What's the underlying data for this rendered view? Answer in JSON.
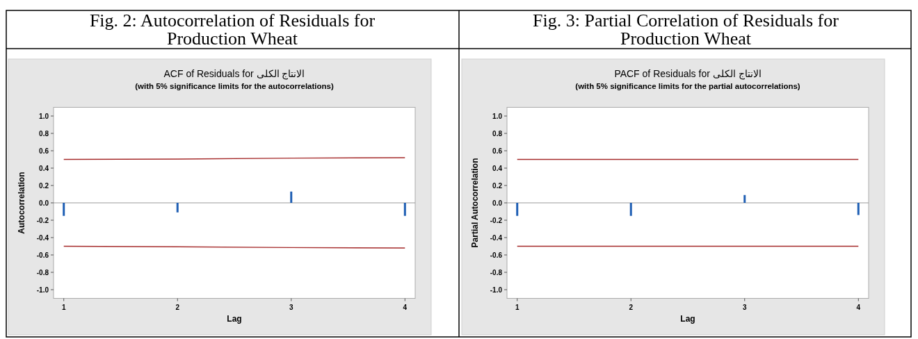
{
  "chart_data": [
    {
      "type": "bar",
      "title": "Fig. 2: Autocorrelation of Residuals for Production Wheat",
      "subtitle": "ACF of Residuals for الانتاج الكلى",
      "annotations": [
        "(with 5% significance limits for the autocorrelations)"
      ],
      "xlabel": "Lag",
      "ylabel": "Autocorrelation",
      "x": [
        1,
        2,
        3,
        4
      ],
      "xlim": [
        0.91,
        4.09
      ],
      "xticks": [
        1,
        2,
        3,
        4
      ],
      "ylim": [
        -1.1,
        1.1
      ],
      "yticks": [
        {
          "value": -1,
          "label": "-1.0"
        },
        -0.8,
        -0.6,
        -0.4,
        -0.2,
        {
          "value": 0,
          "label": "0.0"
        },
        0.2,
        0.4,
        0.6,
        0.8,
        {
          "value": 1,
          "label": "1.0"
        }
      ],
      "series": [
        {
          "color": "#1f5fb4",
          "values": [
            -0.15,
            -0.11,
            0.13,
            -0.15
          ]
        },
        {
          "type": "line",
          "color": "#a52a2a",
          "values": [
            0.5,
            0.505,
            0.515,
            0.52
          ]
        },
        {
          "type": "line",
          "color": "#a52a2a",
          "values": [
            -0.5,
            -0.505,
            -0.515,
            -0.52
          ]
        }
      ]
    },
    {
      "type": "bar",
      "title": "Fig. 3: Partial Correlation of Residuals for Production Wheat",
      "subtitle": "PACF of Residuals for الانتاج الكلى",
      "annotations": [
        "(with 5% significance limits for the partial autocorrelations)"
      ],
      "xlabel": "Lag",
      "ylabel": "Partial Autocorrelation",
      "x": [
        1,
        2,
        3,
        4
      ],
      "xlim": [
        0.91,
        4.09
      ],
      "xticks": [
        1,
        2,
        3,
        4
      ],
      "ylim": [
        -1.1,
        1.1
      ],
      "yticks": [
        {
          "value": -1,
          "label": "-1.0"
        },
        -0.8,
        -0.6,
        -0.4,
        -0.2,
        {
          "value": 0,
          "label": "0.0"
        },
        0.2,
        0.4,
        0.6,
        0.8,
        {
          "value": 1,
          "label": "1.0"
        }
      ],
      "series": [
        {
          "color": "#1f5fb4",
          "values": [
            -0.15,
            -0.15,
            0.09,
            -0.14
          ]
        },
        {
          "type": "line",
          "color": "#a52a2a",
          "values": [
            0.5,
            0.5,
            0.5,
            0.5
          ]
        },
        {
          "type": "line",
          "color": "#a52a2a",
          "values": [
            -0.5,
            -0.5,
            -0.5,
            -0.5
          ]
        }
      ]
    }
  ]
}
